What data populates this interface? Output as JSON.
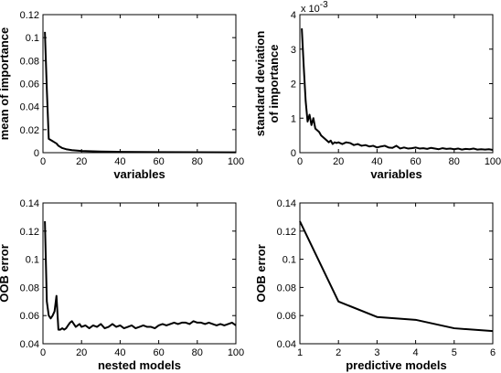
{
  "chart_data": [
    {
      "type": "line",
      "xlabel": "variables",
      "ylabel": [
        "mean of importance"
      ],
      "xlim": [
        0,
        100
      ],
      "ylim": [
        0,
        0.12
      ],
      "xticks": [
        0,
        20,
        40,
        60,
        80,
        100
      ],
      "yticks": [
        0,
        0.02,
        0.04,
        0.06,
        0.08,
        0.1,
        0.12
      ],
      "ytick_labels": [
        "0",
        "0.02",
        "0.04",
        "0.06",
        "0.08",
        "0.1",
        "0.12"
      ],
      "scale_note": "",
      "x": [
        1,
        2,
        3,
        4,
        5,
        6,
        7,
        8,
        10,
        12,
        15,
        20,
        30,
        40,
        60,
        80,
        100
      ],
      "y": [
        0.105,
        0.055,
        0.012,
        0.011,
        0.01,
        0.009,
        0.008,
        0.006,
        0.004,
        0.003,
        0.0022,
        0.0015,
        0.001,
        0.0007,
        0.0005,
        0.0004,
        0.0003
      ]
    },
    {
      "type": "line",
      "xlabel": "variables",
      "ylabel": [
        "standard deviation",
        "of importance"
      ],
      "xlim": [
        0,
        100
      ],
      "ylim": [
        0,
        4
      ],
      "xticks": [
        0,
        20,
        40,
        60,
        80,
        100
      ],
      "yticks": [
        0,
        1,
        2,
        3,
        4
      ],
      "ytick_labels": [
        "0",
        "1",
        "2",
        "3",
        "4"
      ],
      "scale_note": "x 10",
      "scale_exp": "-3",
      "x": [
        1,
        2,
        3,
        4,
        5,
        6,
        7,
        8,
        9,
        10,
        11,
        12,
        13,
        14,
        15,
        16,
        17,
        18,
        19,
        20,
        22,
        24,
        26,
        28,
        30,
        32,
        34,
        36,
        38,
        40,
        42,
        44,
        46,
        48,
        50,
        52,
        54,
        56,
        58,
        60,
        62,
        64,
        66,
        68,
        70,
        72,
        74,
        76,
        78,
        80,
        82,
        84,
        86,
        88,
        90,
        92,
        94,
        96,
        98,
        100
      ],
      "y": [
        3.6,
        2.5,
        1.5,
        0.9,
        1.1,
        0.8,
        1.0,
        0.7,
        0.65,
        0.6,
        0.5,
        0.45,
        0.4,
        0.35,
        0.3,
        0.35,
        0.25,
        0.3,
        0.28,
        0.3,
        0.25,
        0.3,
        0.28,
        0.22,
        0.25,
        0.2,
        0.22,
        0.18,
        0.2,
        0.15,
        0.18,
        0.2,
        0.15,
        0.14,
        0.2,
        0.12,
        0.15,
        0.12,
        0.13,
        0.15,
        0.12,
        0.13,
        0.11,
        0.14,
        0.12,
        0.1,
        0.13,
        0.11,
        0.12,
        0.1,
        0.12,
        0.09,
        0.11,
        0.1,
        0.12,
        0.09,
        0.1,
        0.09,
        0.1,
        0.08
      ]
    },
    {
      "type": "line",
      "xlabel": "nested models",
      "ylabel": [
        "OOB error"
      ],
      "xlim": [
        0,
        100
      ],
      "ylim": [
        0.04,
        0.14
      ],
      "xticks": [
        0,
        20,
        40,
        60,
        80,
        100
      ],
      "yticks": [
        0.04,
        0.06,
        0.08,
        0.1,
        0.12,
        0.14
      ],
      "ytick_labels": [
        "0.04",
        "0.06",
        "0.08",
        "0.1",
        "0.12",
        "0.14"
      ],
      "scale_note": "",
      "x": [
        1,
        2,
        3,
        4,
        5,
        6,
        7,
        8,
        9,
        10,
        11,
        12,
        13,
        14,
        15,
        16,
        17,
        18,
        19,
        20,
        22,
        24,
        26,
        28,
        30,
        32,
        34,
        36,
        38,
        40,
        42,
        44,
        46,
        48,
        50,
        52,
        54,
        56,
        58,
        60,
        62,
        64,
        66,
        68,
        70,
        72,
        74,
        76,
        78,
        80,
        82,
        84,
        86,
        88,
        90,
        92,
        94,
        96,
        98,
        100
      ],
      "y": [
        0.127,
        0.07,
        0.06,
        0.058,
        0.06,
        0.063,
        0.074,
        0.05,
        0.05,
        0.051,
        0.05,
        0.051,
        0.053,
        0.055,
        0.056,
        0.054,
        0.052,
        0.053,
        0.054,
        0.052,
        0.053,
        0.051,
        0.053,
        0.052,
        0.054,
        0.051,
        0.052,
        0.054,
        0.052,
        0.053,
        0.051,
        0.052,
        0.053,
        0.051,
        0.052,
        0.053,
        0.052,
        0.052,
        0.051,
        0.053,
        0.054,
        0.053,
        0.054,
        0.055,
        0.054,
        0.055,
        0.055,
        0.054,
        0.056,
        0.055,
        0.055,
        0.054,
        0.055,
        0.054,
        0.053,
        0.054,
        0.053,
        0.054,
        0.055,
        0.053
      ]
    },
    {
      "type": "line",
      "xlabel": "predictive models",
      "ylabel": [
        "OOB error"
      ],
      "xlim": [
        1,
        6
      ],
      "ylim": [
        0.04,
        0.14
      ],
      "xticks": [
        1,
        2,
        3,
        4,
        5,
        6
      ],
      "yticks": [
        0.04,
        0.06,
        0.08,
        0.1,
        0.12,
        0.14
      ],
      "ytick_labels": [
        "0.04",
        "0.06",
        "0.08",
        "0.1",
        "0.12",
        "0.14"
      ],
      "scale_note": "",
      "x": [
        1,
        2,
        3,
        4,
        5,
        6
      ],
      "y": [
        0.127,
        0.07,
        0.059,
        0.057,
        0.051,
        0.049
      ]
    }
  ]
}
